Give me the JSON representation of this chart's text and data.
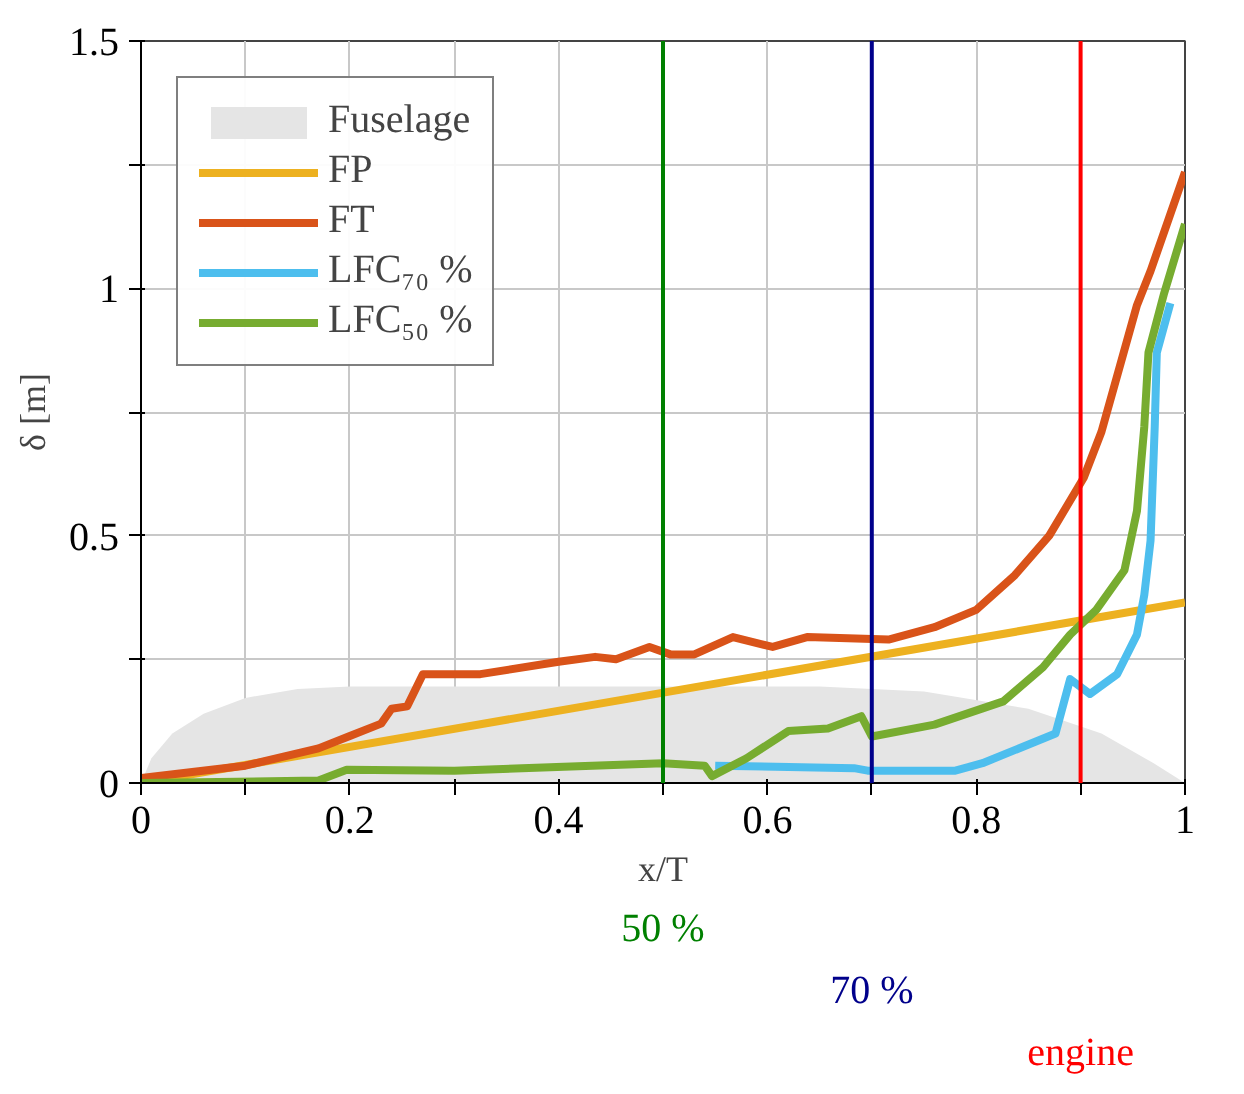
{
  "chart_data": {
    "type": "line",
    "xlabel": "x/T",
    "ylabel": "δ [m]",
    "xlim": [
      0,
      1
    ],
    "ylim": [
      0,
      1.5
    ],
    "xticks": [
      0,
      {
        "value": 0.1,
        "label": null
      },
      0.2,
      {
        "value": 0.3,
        "label": null
      },
      0.4,
      {
        "value": 0.5,
        "label": null
      },
      0.6,
      {
        "value": 0.7,
        "label": null
      },
      0.8,
      {
        "value": 0.9,
        "label": null
      },
      1
    ],
    "yticks": [
      0,
      {
        "value": 0.25,
        "label": null
      },
      0.5,
      {
        "value": 0.75,
        "label": null
      },
      1,
      {
        "value": 1.25,
        "label": null
      },
      1.5
    ],
    "grid": true,
    "legend": "top left",
    "series": [
      {
        "name": "Fuselage",
        "type": "area",
        "color": "#e5e5e5",
        "x": [
          0,
          0.01,
          0.03,
          0.06,
          0.1,
          0.15,
          0.2,
          0.65,
          0.75,
          0.85,
          0.92,
          0.97,
          1
        ],
        "values": [
          0,
          0.05,
          0.1,
          0.14,
          0.172,
          0.19,
          0.195,
          0.195,
          0.185,
          0.15,
          0.1,
          0.04,
          0
        ]
      },
      {
        "name": "FP",
        "color": "#edb120",
        "x": [
          0,
          1
        ],
        "values": [
          0,
          0.365
        ]
      },
      {
        "name": "FT",
        "color": "#d95319",
        "x": [
          0,
          0.1,
          0.17,
          0.2,
          0.23,
          0.24,
          0.255,
          0.27,
          0.325,
          0.4,
          0.435,
          0.455,
          0.487,
          0.507,
          0.53,
          0.567,
          0.605,
          0.638,
          0.716,
          0.76,
          0.8,
          0.837,
          0.87,
          0.903,
          0.92,
          0.954,
          0.967,
          1
        ],
        "values": [
          0.01,
          0.035,
          0.07,
          0.095,
          0.12,
          0.15,
          0.155,
          0.22,
          0.22,
          0.245,
          0.255,
          0.25,
          0.275,
          0.26,
          0.26,
          0.295,
          0.275,
          0.295,
          0.29,
          0.315,
          0.35,
          0.42,
          0.5,
          0.617,
          0.71,
          0.966,
          1.035,
          1.235
        ]
      },
      {
        "name": "LFC₇₀ %",
        "color": "#4dbeee",
        "x": [
          0.55,
          0.683,
          0.696,
          0.735,
          0.78,
          0.806,
          0.876,
          0.89,
          0.909,
          0.935,
          0.954,
          0.961,
          0.967,
          0.971,
          0.973,
          0.986
        ],
        "values": [
          0.035,
          0.03,
          0.025,
          0.025,
          0.025,
          0.04,
          0.1,
          0.21,
          0.18,
          0.22,
          0.3,
          0.38,
          0.49,
          0.72,
          0.87,
          0.97
        ]
      },
      {
        "name": "LFC₅₀ %",
        "color": "#77ac30",
        "x": [
          0,
          0.17,
          0.197,
          0.3,
          0.5,
          0.54,
          0.547,
          0.58,
          0.62,
          0.658,
          0.69,
          0.7,
          0.76,
          0.826,
          0.864,
          0.89,
          0.915,
          0.942,
          0.954,
          0.961,
          0.965,
          0.98,
          1
        ],
        "values": [
          0,
          0.005,
          0.027,
          0.025,
          0.04,
          0.035,
          0.014,
          0.05,
          0.105,
          0.11,
          0.135,
          0.094,
          0.118,
          0.165,
          0.234,
          0.3,
          0.35,
          0.43,
          0.55,
          0.72,
          0.87,
          0.99,
          1.13
        ]
      }
    ],
    "ref_lines": [
      {
        "axis": "x",
        "value": 0.5,
        "label": "50 %",
        "color": "#008000"
      },
      {
        "axis": "x",
        "value": 0.7,
        "label": "70 %",
        "color": "#00008b"
      },
      {
        "axis": "x",
        "value": 0.9,
        "label": "engine",
        "color": "#ff0000"
      }
    ]
  }
}
